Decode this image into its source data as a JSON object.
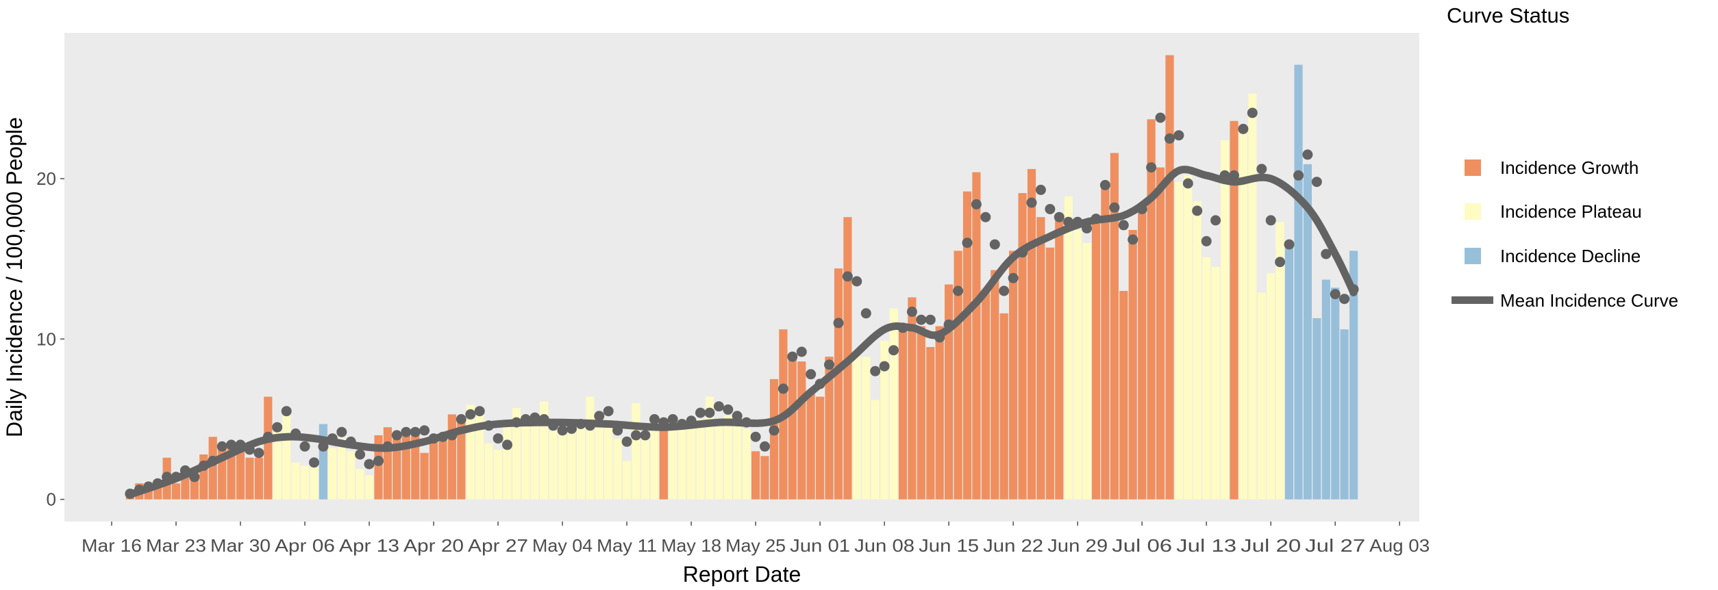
{
  "chart_data": {
    "type": "bar",
    "title": "",
    "xlabel": "Report Date",
    "ylabel": "Daily Incidence / 100,000 People",
    "ylim": [
      -1.4,
      29.1
    ],
    "yticks": [
      0,
      10,
      20
    ],
    "xticks": [
      "Mar 16",
      "Mar 23",
      "Mar 30",
      "Apr 06",
      "Apr 13",
      "Apr 20",
      "Apr 27",
      "May 04",
      "May 11",
      "May 18",
      "May 25",
      "Jun 01",
      "Jun 08",
      "Jun 15",
      "Jun 22",
      "Jun 29",
      "Jul 06",
      "Jul 13",
      "Jul 20",
      "Jul 27",
      "Aug 03"
    ],
    "grid": false,
    "legend_position": "right",
    "legend": {
      "title": "Curve Status",
      "items": [
        {
          "key": "G",
          "label": "Incidence Growth",
          "color": "#ef8f5f",
          "kind": "box"
        },
        {
          "key": "P",
          "label": "Incidence Plateau",
          "color": "#fefbc4",
          "kind": "box"
        },
        {
          "key": "D",
          "label": "Incidence Decline",
          "color": "#98bfda",
          "kind": "box"
        },
        {
          "key": "M",
          "label": "Mean Incidence Curve",
          "color": "#636363",
          "kind": "line"
        }
      ]
    },
    "start_date": "Mar 18",
    "end_date": "Jul 29",
    "series": [
      {
        "name": "Daily Incidence (bars, colored by curve status)",
        "values": [
          0.3,
          1.0,
          0.7,
          0.8,
          2.6,
          1.0,
          1.9,
          1.3,
          2.8,
          3.9,
          3.1,
          3.4,
          3.2,
          2.6,
          2.6,
          6.4,
          4.2,
          5.2,
          2.3,
          2.1,
          2.0,
          4.7,
          3.2,
          3.8,
          3.0,
          1.9,
          1.5,
          4.0,
          4.5,
          4.2,
          4.2,
          4.3,
          2.9,
          4.0,
          4.1,
          5.3,
          5.1,
          5.9,
          5.3,
          3.5,
          3.1,
          4.5,
          5.7,
          4.8,
          4.9,
          6.1,
          4.3,
          4.2,
          4.3,
          4.7,
          6.4,
          5.2,
          4.6,
          3.8,
          2.4,
          6.0,
          3.9,
          4.5,
          4.7,
          4.7,
          4.9,
          4.5,
          5.0,
          6.4,
          5.0,
          5.2,
          5.1,
          4.4,
          3.0,
          2.7,
          7.5,
          10.6,
          8.7,
          8.6,
          6.6,
          6.4,
          8.9,
          14.4,
          17.6,
          8.9,
          8.9,
          6.2,
          9.9,
          11.9,
          10.7,
          12.6,
          10.8,
          9.5,
          10.8,
          13.4,
          15.5,
          19.2,
          20.4,
          13.1,
          14.3,
          11.6,
          15.5,
          19.1,
          20.6,
          17.6,
          15.7,
          17.5,
          18.9,
          16.8,
          16.0,
          17.3,
          19.7,
          21.6,
          13.0,
          16.8,
          18.4,
          23.7,
          20.7,
          27.7,
          19.8,
          20.2,
          18.6,
          15.1,
          14.5,
          22.4,
          23.6,
          23.2,
          25.3,
          12.9,
          14.1,
          17.3,
          15.7,
          27.1,
          20.9,
          11.3,
          13.7,
          13.2,
          10.6,
          15.5
        ]
      },
      {
        "name": "Curve Status",
        "values": [
          "G",
          "G",
          "G",
          "G",
          "G",
          "G",
          "G",
          "G",
          "G",
          "G",
          "G",
          "G",
          "G",
          "G",
          "G",
          "G",
          "P",
          "P",
          "P",
          "P",
          "P",
          "D",
          "P",
          "P",
          "P",
          "P",
          "P",
          "G",
          "G",
          "G",
          "G",
          "G",
          "G",
          "G",
          "G",
          "G",
          "G",
          "P",
          "P",
          "P",
          "P",
          "P",
          "P",
          "P",
          "P",
          "P",
          "P",
          "P",
          "P",
          "P",
          "P",
          "P",
          "P",
          "P",
          "P",
          "P",
          "P",
          "P",
          "G",
          "P",
          "P",
          "P",
          "P",
          "P",
          "P",
          "P",
          "P",
          "P",
          "G",
          "G",
          "G",
          "G",
          "G",
          "G",
          "G",
          "G",
          "G",
          "G",
          "G",
          "P",
          "P",
          "P",
          "P",
          "P",
          "G",
          "G",
          "G",
          "G",
          "G",
          "G",
          "G",
          "G",
          "G",
          "G",
          "G",
          "G",
          "G",
          "G",
          "G",
          "G",
          "G",
          "G",
          "P",
          "P",
          "P",
          "G",
          "G",
          "G",
          "G",
          "G",
          "G",
          "G",
          "G",
          "G",
          "P",
          "P",
          "P",
          "P",
          "P",
          "P",
          "G",
          "P",
          "P",
          "P",
          "P",
          "P",
          "D",
          "D",
          "D",
          "D",
          "D",
          "D",
          "D",
          "D"
        ]
      },
      {
        "name": "Daily Points",
        "values": [
          0.35,
          0.6,
          0.8,
          1.0,
          1.4,
          1.4,
          1.8,
          1.4,
          2.1,
          2.4,
          3.3,
          3.4,
          3.4,
          3.1,
          2.9,
          3.9,
          4.5,
          5.5,
          4.1,
          3.3,
          2.3,
          3.3,
          3.8,
          4.2,
          3.6,
          2.8,
          2.2,
          2.4,
          3.3,
          4.0,
          4.2,
          4.2,
          4.3,
          3.8,
          3.9,
          4.0,
          5.0,
          5.3,
          5.5,
          4.6,
          3.8,
          3.4,
          4.8,
          5.0,
          5.1,
          5.0,
          4.6,
          4.3,
          4.4,
          4.7,
          4.6,
          5.2,
          5.5,
          4.3,
          3.6,
          4.0,
          4.0,
          5.0,
          4.8,
          5.0,
          4.7,
          4.9,
          5.4,
          5.4,
          5.8,
          5.6,
          5.2,
          4.8,
          3.9,
          3.3,
          4.3,
          6.9,
          8.9,
          9.2,
          7.8,
          7.2,
          8.4,
          11.0,
          13.9,
          13.6,
          11.6,
          8.0,
          8.3,
          9.3,
          10.7,
          11.7,
          11.2,
          11.2,
          10.1,
          10.9,
          13.0,
          16.0,
          18.4,
          17.6,
          15.9,
          13.0,
          13.8,
          15.4,
          18.5,
          19.3,
          18.1,
          17.6,
          17.3,
          17.3,
          16.9,
          17.5,
          19.6,
          18.2,
          17.1,
          16.2,
          18.1,
          20.7,
          23.8,
          22.5,
          22.7,
          19.7,
          18.0,
          16.1,
          17.4,
          20.2,
          20.2,
          23.1,
          24.1,
          20.6,
          17.4,
          14.8,
          15.9,
          20.2,
          21.5,
          19.8,
          15.3,
          12.8,
          12.5,
          13.1
        ]
      },
      {
        "name": "Mean Incidence Curve",
        "x_days": [
          0,
          5,
          10,
          14,
          17,
          20,
          24,
          28,
          32,
          36,
          40,
          46,
          52,
          58,
          64,
          70,
          74,
          78,
          82,
          85,
          88,
          92,
          96,
          100,
          104,
          108,
          111,
          114,
          117,
          120,
          124,
          128,
          131,
          133
        ],
        "values": [
          0.3,
          1.3,
          2.6,
          3.6,
          3.9,
          3.8,
          3.4,
          3.2,
          3.6,
          4.3,
          4.7,
          4.8,
          4.7,
          4.5,
          4.8,
          4.9,
          6.7,
          8.6,
          10.6,
          10.7,
          10.3,
          12.3,
          15.1,
          16.4,
          17.3,
          17.7,
          18.8,
          20.5,
          20.2,
          19.8,
          20.0,
          18.2,
          15.3,
          12.9
        ]
      }
    ]
  },
  "axes": {
    "x_title": "Report Date",
    "y_title": "Daily Incidence / 100,000 People"
  },
  "legend_title": "Curve Status",
  "legend_labels": [
    "Incidence Growth",
    "Incidence Plateau",
    "Incidence Decline",
    "Mean Incidence Curve"
  ],
  "colors": {
    "panel_bg": "#ebebeb",
    "growth": "#ef8f5f",
    "plateau": "#fefbc4",
    "decline": "#98bfda",
    "mean_line": "#636363",
    "points": "#636363",
    "tick_text": "#4d4d4d"
  }
}
